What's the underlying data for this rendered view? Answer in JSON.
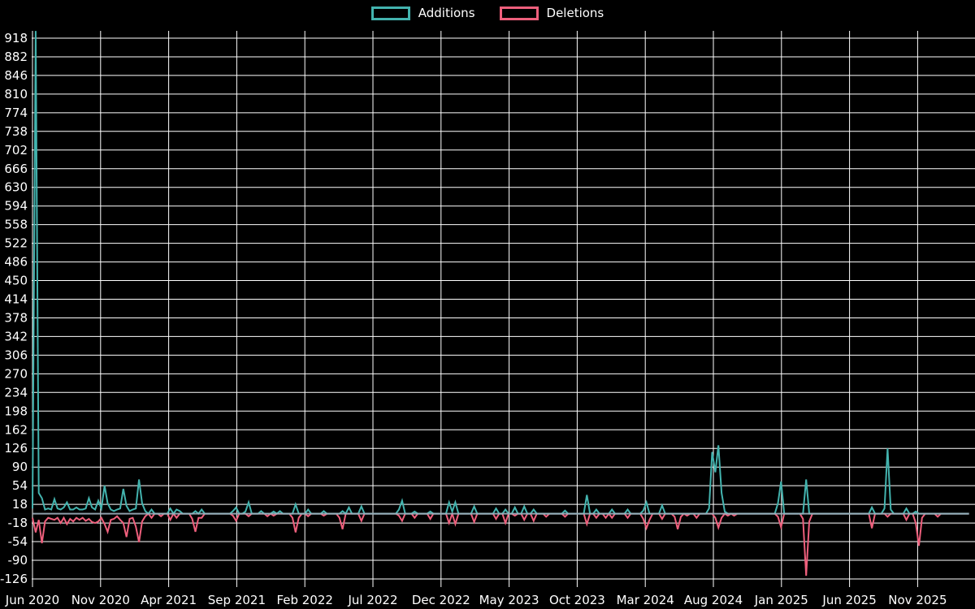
{
  "legend": {
    "additions": "Additions",
    "deletions": "Deletions"
  },
  "colors": {
    "background": "#000000",
    "grid": "#ffffff",
    "text": "#ffffff",
    "zero_line": "#9fb0bd",
    "additions": "#43b3ae",
    "deletions": "#ee5f7c"
  },
  "chart_data": {
    "type": "line",
    "title": "",
    "xlabel": "",
    "ylabel": "",
    "point_interval": "weekly",
    "n_points": 300,
    "baseline_value": 0,
    "grid": true,
    "legend_position": "top-center",
    "ylim": [
      -126,
      932
    ],
    "y_ticks": [
      918,
      882,
      846,
      810,
      774,
      738,
      702,
      666,
      630,
      594,
      558,
      522,
      486,
      450,
      414,
      378,
      342,
      306,
      270,
      234,
      198,
      162,
      126,
      90,
      54,
      18,
      -18,
      -54,
      -90,
      -126
    ],
    "x_tick_labels": [
      "Jun 2020",
      "Nov 2020",
      "Apr 2021",
      "Sep 2021",
      "Feb 2022",
      "Jul 2022",
      "Dec 2022",
      "May 2023",
      "Oct 2023",
      "Mar 2024",
      "Aug 2024",
      "Jan 2025",
      "Jun 2025",
      "Nov 2025"
    ],
    "x_tick_interval_months": 5,
    "weeks_per_month": 4.348,
    "series": [
      {
        "name": "Additions",
        "color": "#43b3ae",
        "default": 0,
        "points": {
          "0": 10,
          "1": 932,
          "2": 40,
          "3": 30,
          "4": 8,
          "5": 10,
          "6": 8,
          "7": 28,
          "8": 10,
          "9": 8,
          "10": 12,
          "11": 22,
          "12": 8,
          "13": 8,
          "14": 12,
          "15": 8,
          "16": 8,
          "17": 10,
          "18": 30,
          "19": 12,
          "20": 8,
          "21": 25,
          "22": 10,
          "23": 54,
          "24": 20,
          "25": 8,
          "26": 5,
          "27": 8,
          "28": 10,
          "29": 48,
          "30": 15,
          "31": 5,
          "32": 8,
          "33": 10,
          "34": 66,
          "35": 20,
          "36": 5,
          "38": 8,
          "44": 10,
          "46": 8,
          "47": 5,
          "52": 5,
          "54": 8,
          "64": 5,
          "65": 12,
          "68": 4,
          "69": 22,
          "73": 5,
          "77": 4,
          "79": 5,
          "84": 18,
          "88": 8,
          "93": 5,
          "99": 5,
          "101": 12,
          "105": 14,
          "117": 8,
          "118": 25,
          "122": 4,
          "127": 4,
          "133": 22,
          "134": 4,
          "135": 22,
          "141": 14,
          "148": 10,
          "151": 8,
          "154": 12,
          "157": 14,
          "160": 8,
          "170": 6,
          "177": 36,
          "180": 8,
          "185": 8,
          "190": 8,
          "195": 6,
          "196": 22,
          "201": 16,
          "216": 10,
          "217": 119,
          "218": 80,
          "219": 132,
          "220": 40,
          "221": 4,
          "238": 20,
          "239": 62,
          "247": 66,
          "268": 12,
          "272": 10,
          "273": 126,
          "274": 8,
          "279": 10,
          "282": 4
        }
      },
      {
        "name": "Deletions",
        "color": "#ee5f7c",
        "default": 0,
        "points": {
          "0": -8,
          "1": -36,
          "2": -12,
          "3": -57,
          "4": -15,
          "5": -8,
          "6": -10,
          "7": -12,
          "8": -8,
          "9": -18,
          "10": -8,
          "11": -20,
          "12": -10,
          "13": -15,
          "14": -8,
          "15": -12,
          "16": -8,
          "17": -14,
          "18": -10,
          "19": -16,
          "20": -18,
          "21": -15,
          "22": -8,
          "23": -20,
          "24": -35,
          "25": -12,
          "26": -10,
          "27": -5,
          "28": -12,
          "29": -18,
          "30": -45,
          "31": -10,
          "32": -8,
          "33": -25,
          "34": -55,
          "35": -15,
          "36": -5,
          "38": -8,
          "41": -5,
          "44": -12,
          "46": -8,
          "51": -10,
          "52": -35,
          "53": -8,
          "54": -8,
          "64": -4,
          "65": -14,
          "69": -5,
          "75": -5,
          "77": -4,
          "83": -8,
          "84": -36,
          "85": -8,
          "88": -5,
          "93": -4,
          "98": -8,
          "99": -30,
          "105": -14,
          "117": -4,
          "118": -14,
          "122": -8,
          "127": -10,
          "133": -18,
          "135": -20,
          "141": -16,
          "148": -10,
          "151": -18,
          "154": -4,
          "157": -12,
          "160": -14,
          "164": -6,
          "170": -6,
          "177": -20,
          "180": -8,
          "183": -8,
          "185": -8,
          "190": -8,
          "195": -10,
          "196": -28,
          "197": -12,
          "201": -10,
          "205": -6,
          "206": -30,
          "207": -6,
          "209": -4,
          "212": -8,
          "218": -8,
          "219": -27,
          "220": -8,
          "222": -4,
          "224": -4,
          "238": -6,
          "239": -26,
          "246": -10,
          "247": -120,
          "248": -15,
          "268": -28,
          "273": -6,
          "279": -12,
          "282": -18,
          "283": -62,
          "284": -8,
          "289": -6
        }
      }
    ]
  }
}
